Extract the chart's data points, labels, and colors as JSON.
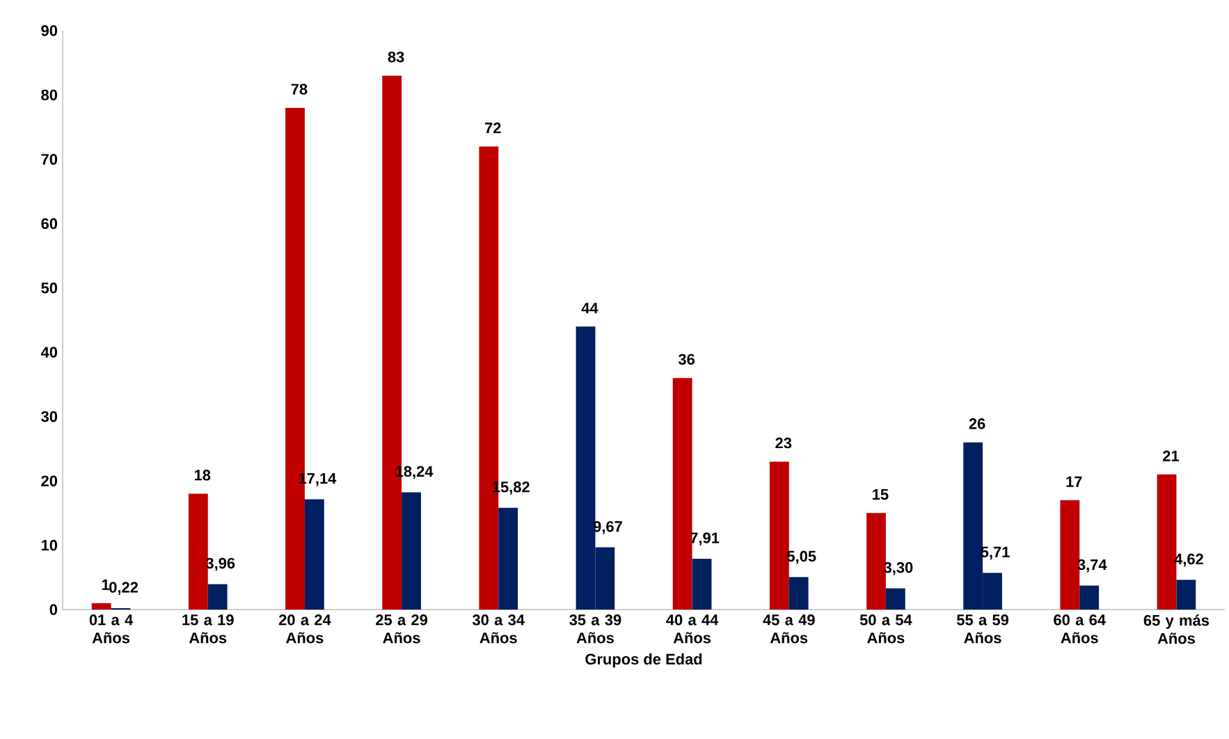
{
  "chart_data": {
    "type": "bar",
    "xlabel": "Grupos de Edad",
    "categories": [
      "01 a 4 Años",
      "15 a 19 Años",
      "20 a 24 Años",
      "25 a 29 Años",
      "30 a 34 Años",
      "35 a 39 Años",
      "40 a 44 Años",
      "45 a 49 Años",
      "50 a 54 Años",
      "55 a 59 Años",
      "60 a 64 Años",
      "65 y más Años"
    ],
    "series": [
      {
        "color": "#c00000",
        "colors": [
          "#c00000",
          "#c00000",
          "#c00000",
          "#c00000",
          "#c00000",
          "#002060",
          "#c00000",
          "#c00000",
          "#c00000",
          "#002060",
          "#c00000",
          "#c00000"
        ],
        "values": [
          1,
          18,
          78,
          83,
          72,
          44,
          36,
          23,
          15,
          26,
          17,
          21
        ],
        "value_labels": [
          "1",
          "18",
          "78",
          "83",
          "72",
          "44",
          "36",
          "23",
          "15",
          "26",
          "17",
          "21"
        ]
      },
      {
        "color": "#002060",
        "values": [
          0.22,
          3.96,
          17.14,
          18.24,
          15.82,
          9.67,
          7.91,
          5.05,
          3.3,
          5.71,
          3.74,
          4.62
        ],
        "value_labels": [
          "0,22",
          "3,96",
          "17,14",
          "18,24",
          "15,82",
          "9,67",
          "7,91",
          "5,05",
          "3,30",
          "5,71",
          "3,74",
          "4,62"
        ]
      }
    ],
    "ylim": [
      0,
      90
    ],
    "yticks": [
      0,
      10,
      20,
      30,
      40,
      50,
      60,
      70,
      80,
      90
    ],
    "grid": false
  }
}
